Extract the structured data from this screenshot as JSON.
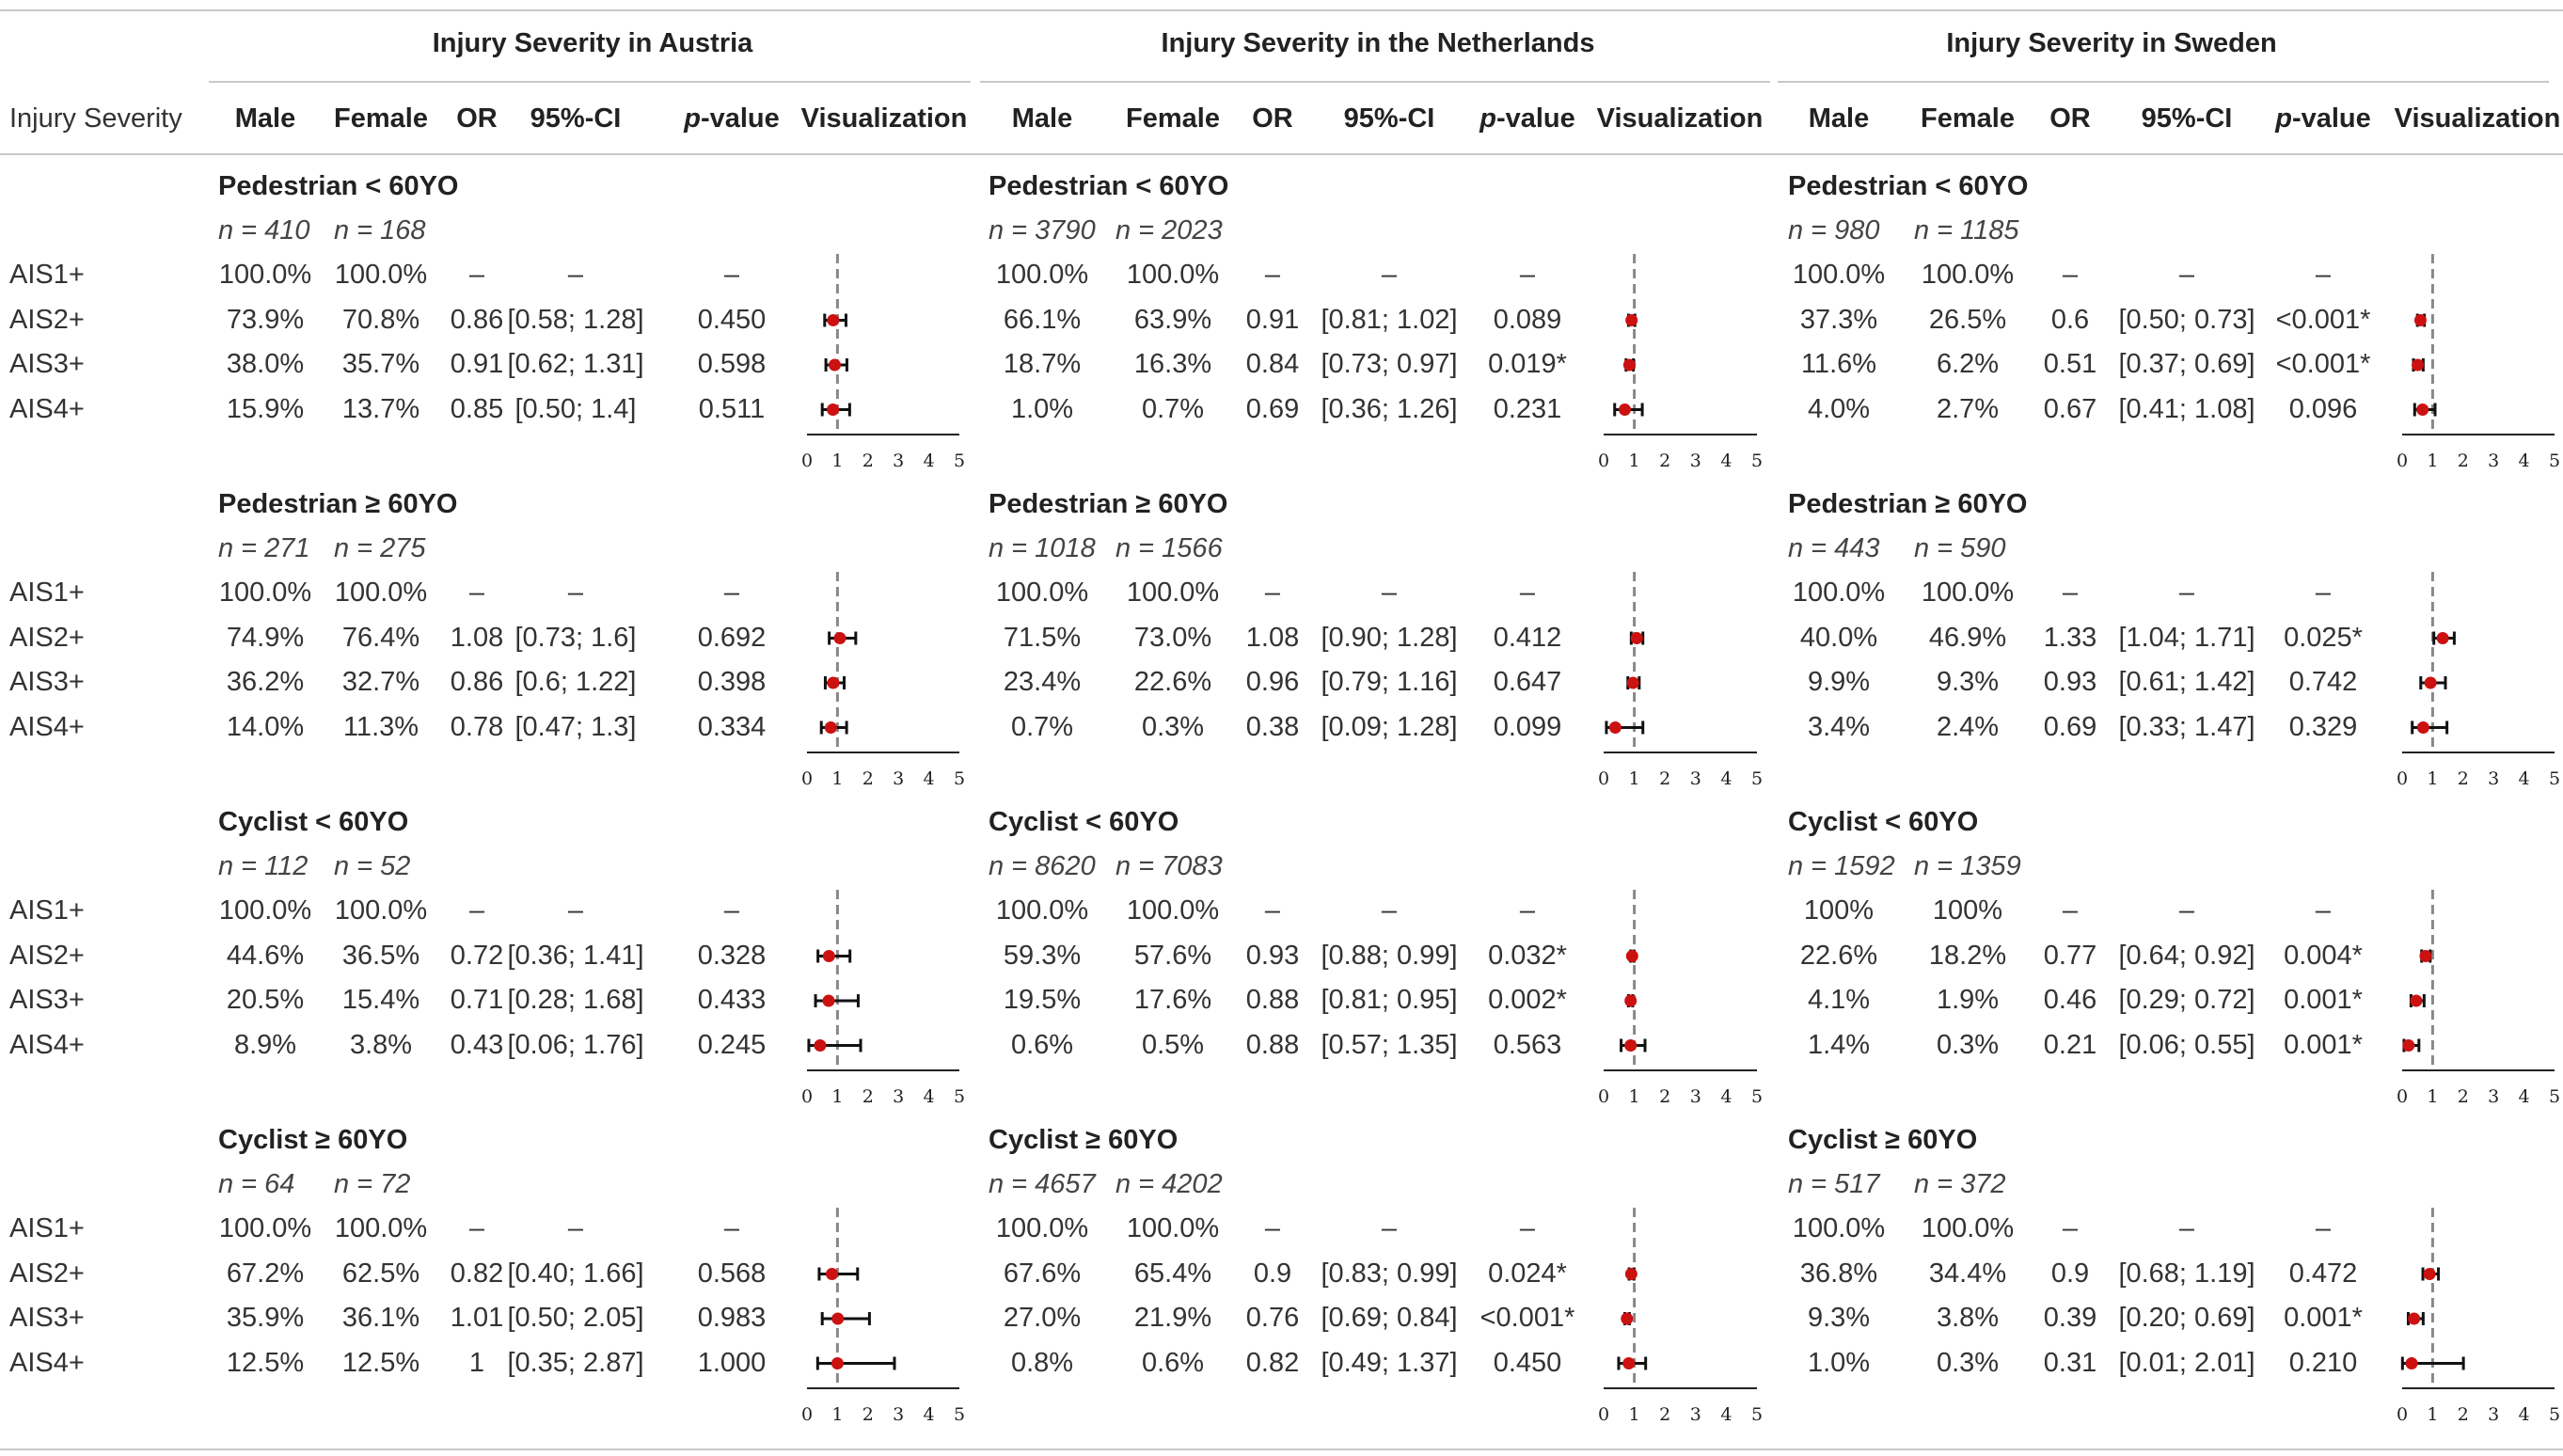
{
  "row_header": "Injury Severity",
  "columns": {
    "male": "Male",
    "female": "Female",
    "or": "OR",
    "ci": "95%-CI",
    "p": "p",
    "p_suffix": "-value",
    "viz": "Visualization"
  },
  "axis_ticks": [
    "0",
    "1",
    "2",
    "3",
    "4",
    "5"
  ],
  "row_labels": [
    "AIS1+",
    "AIS2+",
    "AIS3+",
    "AIS4+"
  ],
  "colors": {
    "point": "#cc1111",
    "reference_line": "#888888",
    "rule": "#c8c8c8"
  },
  "countries": [
    {
      "title": "Injury Severity in Austria",
      "groups": [
        {
          "name": "Pedestrian < 60YO",
          "n_male": "n = 410",
          "n_female": "n = 168",
          "rows": [
            {
              "label": "AIS1+",
              "male": "100.0%",
              "female": "100.0%",
              "or": "–",
              "ci": "–",
              "p": "–"
            },
            {
              "label": "AIS2+",
              "male": "73.9%",
              "female": "70.8%",
              "or": "0.86",
              "ci": "[0.58; 1.28]",
              "p": "0.450",
              "or_val": 0.86,
              "lo": 0.58,
              "hi": 1.28
            },
            {
              "label": "AIS3+",
              "male": "38.0%",
              "female": "35.7%",
              "or": "0.91",
              "ci": "[0.62; 1.31]",
              "p": "0.598",
              "or_val": 0.91,
              "lo": 0.62,
              "hi": 1.31
            },
            {
              "label": "AIS4+",
              "male": "15.9%",
              "female": "13.7%",
              "or": "0.85",
              "ci": "[0.50; 1.4]",
              "p": "0.511",
              "or_val": 0.85,
              "lo": 0.5,
              "hi": 1.4
            }
          ]
        },
        {
          "name": "Pedestrian ≥ 60YO",
          "n_male": "n = 271",
          "n_female": "n = 275",
          "rows": [
            {
              "label": "AIS1+",
              "male": "100.0%",
              "female": "100.0%",
              "or": "–",
              "ci": "–",
              "p": "–"
            },
            {
              "label": "AIS2+",
              "male": "74.9%",
              "female": "76.4%",
              "or": "1.08",
              "ci": "[0.73; 1.6]",
              "p": "0.692",
              "or_val": 1.08,
              "lo": 0.73,
              "hi": 1.6
            },
            {
              "label": "AIS3+",
              "male": "36.2%",
              "female": "32.7%",
              "or": "0.86",
              "ci": "[0.6; 1.22]",
              "p": "0.398",
              "or_val": 0.86,
              "lo": 0.6,
              "hi": 1.22
            },
            {
              "label": "AIS4+",
              "male": "14.0%",
              "female": "11.3%",
              "or": "0.78",
              "ci": "[0.47; 1.3]",
              "p": "0.334",
              "or_val": 0.78,
              "lo": 0.47,
              "hi": 1.3
            }
          ]
        },
        {
          "name": "Cyclist < 60YO",
          "n_male": "n = 112",
          "n_female": "n = 52",
          "rows": [
            {
              "label": "AIS1+",
              "male": "100.0%",
              "female": "100.0%",
              "or": "–",
              "ci": "–",
              "p": "–"
            },
            {
              "label": "AIS2+",
              "male": "44.6%",
              "female": "36.5%",
              "or": "0.72",
              "ci": "[0.36; 1.41]",
              "p": "0.328",
              "or_val": 0.72,
              "lo": 0.36,
              "hi": 1.41
            },
            {
              "label": "AIS3+",
              "male": "20.5%",
              "female": "15.4%",
              "or": "0.71",
              "ci": "[0.28; 1.68]",
              "p": "0.433",
              "or_val": 0.71,
              "lo": 0.28,
              "hi": 1.68
            },
            {
              "label": "AIS4+",
              "male": "8.9%",
              "female": "3.8%",
              "or": "0.43",
              "ci": "[0.06; 1.76]",
              "p": "0.245",
              "or_val": 0.43,
              "lo": 0.06,
              "hi": 1.76
            }
          ]
        },
        {
          "name": "Cyclist ≥ 60YO",
          "n_male": "n = 64",
          "n_female": "n = 72",
          "rows": [
            {
              "label": "AIS1+",
              "male": "100.0%",
              "female": "100.0%",
              "or": "–",
              "ci": "–",
              "p": "–"
            },
            {
              "label": "AIS2+",
              "male": "67.2%",
              "female": "62.5%",
              "or": "0.82",
              "ci": "[0.40; 1.66]",
              "p": "0.568",
              "or_val": 0.82,
              "lo": 0.4,
              "hi": 1.66
            },
            {
              "label": "AIS3+",
              "male": "35.9%",
              "female": "36.1%",
              "or": "1.01",
              "ci": "[0.50; 2.05]",
              "p": "0.983",
              "or_val": 1.01,
              "lo": 0.5,
              "hi": 2.05
            },
            {
              "label": "AIS4+",
              "male": "12.5%",
              "female": "12.5%",
              "or": "1",
              "ci": "[0.35; 2.87]",
              "p": "1.000",
              "or_val": 1.0,
              "lo": 0.35,
              "hi": 2.87
            }
          ]
        }
      ]
    },
    {
      "title": "Injury Severity in the Netherlands",
      "groups": [
        {
          "name": "Pedestrian < 60YO",
          "n_male": "n = 3790",
          "n_female": "n = 2023",
          "rows": [
            {
              "label": "AIS1+",
              "male": "100.0%",
              "female": "100.0%",
              "or": "–",
              "ci": "–",
              "p": "–"
            },
            {
              "label": "AIS2+",
              "male": "66.1%",
              "female": "63.9%",
              "or": "0.91",
              "ci": "[0.81; 1.02]",
              "p": "0.089",
              "or_val": 0.91,
              "lo": 0.81,
              "hi": 1.02
            },
            {
              "label": "AIS3+",
              "male": "18.7%",
              "female": "16.3%",
              "or": "0.84",
              "ci": "[0.73; 0.97]",
              "p": "0.019*",
              "or_val": 0.84,
              "lo": 0.73,
              "hi": 0.97
            },
            {
              "label": "AIS4+",
              "male": "1.0%",
              "female": "0.7%",
              "or": "0.69",
              "ci": "[0.36; 1.26]",
              "p": "0.231",
              "or_val": 0.69,
              "lo": 0.36,
              "hi": 1.26
            }
          ]
        },
        {
          "name": "Pedestrian ≥ 60YO",
          "n_male": "n = 1018",
          "n_female": "n = 1566",
          "rows": [
            {
              "label": "AIS1+",
              "male": "100.0%",
              "female": "100.0%",
              "or": "–",
              "ci": "–",
              "p": "–"
            },
            {
              "label": "AIS2+",
              "male": "71.5%",
              "female": "73.0%",
              "or": "1.08",
              "ci": "[0.90; 1.28]",
              "p": "0.412",
              "or_val": 1.08,
              "lo": 0.9,
              "hi": 1.28
            },
            {
              "label": "AIS3+",
              "male": "23.4%",
              "female": "22.6%",
              "or": "0.96",
              "ci": "[0.79; 1.16]",
              "p": "0.647",
              "or_val": 0.96,
              "lo": 0.79,
              "hi": 1.16
            },
            {
              "label": "AIS4+",
              "male": "0.7%",
              "female": "0.3%",
              "or": "0.38",
              "ci": "[0.09; 1.28]",
              "p": "0.099",
              "or_val": 0.38,
              "lo": 0.09,
              "hi": 1.28
            }
          ]
        },
        {
          "name": "Cyclist < 60YO",
          "n_male": "n = 8620",
          "n_female": "n = 7083",
          "rows": [
            {
              "label": "AIS1+",
              "male": "100.0%",
              "female": "100.0%",
              "or": "–",
              "ci": "–",
              "p": "–"
            },
            {
              "label": "AIS2+",
              "male": "59.3%",
              "female": "57.6%",
              "or": "0.93",
              "ci": "[0.88; 0.99]",
              "p": "0.032*",
              "or_val": 0.93,
              "lo": 0.88,
              "hi": 0.99
            },
            {
              "label": "AIS3+",
              "male": "19.5%",
              "female": "17.6%",
              "or": "0.88",
              "ci": "[0.81; 0.95]",
              "p": "0.002*",
              "or_val": 0.88,
              "lo": 0.81,
              "hi": 0.95
            },
            {
              "label": "AIS4+",
              "male": "0.6%",
              "female": "0.5%",
              "or": "0.88",
              "ci": "[0.57; 1.35]",
              "p": "0.563",
              "or_val": 0.88,
              "lo": 0.57,
              "hi": 1.35
            }
          ]
        },
        {
          "name": "Cyclist ≥ 60YO",
          "n_male": "n = 4657",
          "n_female": "n = 4202",
          "rows": [
            {
              "label": "AIS1+",
              "male": "100.0%",
              "female": "100.0%",
              "or": "–",
              "ci": "–",
              "p": "–"
            },
            {
              "label": "AIS2+",
              "male": "67.6%",
              "female": "65.4%",
              "or": "0.9",
              "ci": "[0.83; 0.99]",
              "p": "0.024*",
              "or_val": 0.9,
              "lo": 0.83,
              "hi": 0.99
            },
            {
              "label": "AIS3+",
              "male": "27.0%",
              "female": "21.9%",
              "or": "0.76",
              "ci": "[0.69; 0.84]",
              "p": "<0.001*",
              "or_val": 0.76,
              "lo": 0.69,
              "hi": 0.84
            },
            {
              "label": "AIS4+",
              "male": "0.8%",
              "female": "0.6%",
              "or": "0.82",
              "ci": "[0.49; 1.37]",
              "p": "0.450",
              "or_val": 0.82,
              "lo": 0.49,
              "hi": 1.37
            }
          ]
        }
      ]
    },
    {
      "title": "Injury Severity in Sweden",
      "groups": [
        {
          "name": "Pedestrian < 60YO",
          "n_male": "n = 980",
          "n_female": "n = 1185",
          "rows": [
            {
              "label": "AIS1+",
              "male": "100.0%",
              "female": "100.0%",
              "or": "–",
              "ci": "–",
              "p": "–"
            },
            {
              "label": "AIS2+",
              "male": "37.3%",
              "female": "26.5%",
              "or": "0.6",
              "ci": "[0.50; 0.73]",
              "p": "<0.001*",
              "or_val": 0.6,
              "lo": 0.5,
              "hi": 0.73
            },
            {
              "label": "AIS3+",
              "male": "11.6%",
              "female": "6.2%",
              "or": "0.51",
              "ci": "[0.37; 0.69]",
              "p": "<0.001*",
              "or_val": 0.51,
              "lo": 0.37,
              "hi": 0.69
            },
            {
              "label": "AIS4+",
              "male": "4.0%",
              "female": "2.7%",
              "or": "0.67",
              "ci": "[0.41; 1.08]",
              "p": "0.096",
              "or_val": 0.67,
              "lo": 0.41,
              "hi": 1.08
            }
          ]
        },
        {
          "name": "Pedestrian ≥ 60YO",
          "n_male": "n = 443",
          "n_female": "n = 590",
          "rows": [
            {
              "label": "AIS1+",
              "male": "100.0%",
              "female": "100.0%",
              "or": "–",
              "ci": "–",
              "p": "–"
            },
            {
              "label": "AIS2+",
              "male": "40.0%",
              "female": "46.9%",
              "or": "1.33",
              "ci": "[1.04; 1.71]",
              "p": "0.025*",
              "or_val": 1.33,
              "lo": 1.04,
              "hi": 1.71
            },
            {
              "label": "AIS3+",
              "male": "9.9%",
              "female": "9.3%",
              "or": "0.93",
              "ci": "[0.61; 1.42]",
              "p": "0.742",
              "or_val": 0.93,
              "lo": 0.61,
              "hi": 1.42
            },
            {
              "label": "AIS4+",
              "male": "3.4%",
              "female": "2.4%",
              "or": "0.69",
              "ci": "[0.33; 1.47]",
              "p": "0.329",
              "or_val": 0.69,
              "lo": 0.33,
              "hi": 1.47
            }
          ]
        },
        {
          "name": "Cyclist < 60YO",
          "n_male": "n = 1592",
          "n_female": "n = 1359",
          "rows": [
            {
              "label": "AIS1+",
              "male": "100%",
              "female": "100%",
              "or": "–",
              "ci": "–",
              "p": "–"
            },
            {
              "label": "AIS2+",
              "male": "22.6%",
              "female": "18.2%",
              "or": "0.77",
              "ci": "[0.64; 0.92]",
              "p": "0.004*",
              "or_val": 0.77,
              "lo": 0.64,
              "hi": 0.92
            },
            {
              "label": "AIS3+",
              "male": "4.1%",
              "female": "1.9%",
              "or": "0.46",
              "ci": "[0.29; 0.72]",
              "p": "0.001*",
              "or_val": 0.46,
              "lo": 0.29,
              "hi": 0.72
            },
            {
              "label": "AIS4+",
              "male": "1.4%",
              "female": "0.3%",
              "or": "0.21",
              "ci": "[0.06; 0.55]",
              "p": "0.001*",
              "or_val": 0.21,
              "lo": 0.06,
              "hi": 0.55
            }
          ]
        },
        {
          "name": "Cyclist ≥ 60YO",
          "n_male": "n = 517",
          "n_female": "n = 372",
          "rows": [
            {
              "label": "AIS1+",
              "male": "100.0%",
              "female": "100.0%",
              "or": "–",
              "ci": "–",
              "p": "–"
            },
            {
              "label": "AIS2+",
              "male": "36.8%",
              "female": "34.4%",
              "or": "0.9",
              "ci": "[0.68; 1.19]",
              "p": "0.472",
              "or_val": 0.9,
              "lo": 0.68,
              "hi": 1.19
            },
            {
              "label": "AIS3+",
              "male": "9.3%",
              "female": "3.8%",
              "or": "0.39",
              "ci": "[0.20; 0.69]",
              "p": "0.001*",
              "or_val": 0.39,
              "lo": 0.2,
              "hi": 0.69
            },
            {
              "label": "AIS4+",
              "male": "1.0%",
              "female": "0.3%",
              "or": "0.31",
              "ci": "[0.01; 2.01]",
              "p": "0.210",
              "or_val": 0.31,
              "lo": 0.01,
              "hi": 2.01
            }
          ]
        }
      ]
    }
  ]
}
